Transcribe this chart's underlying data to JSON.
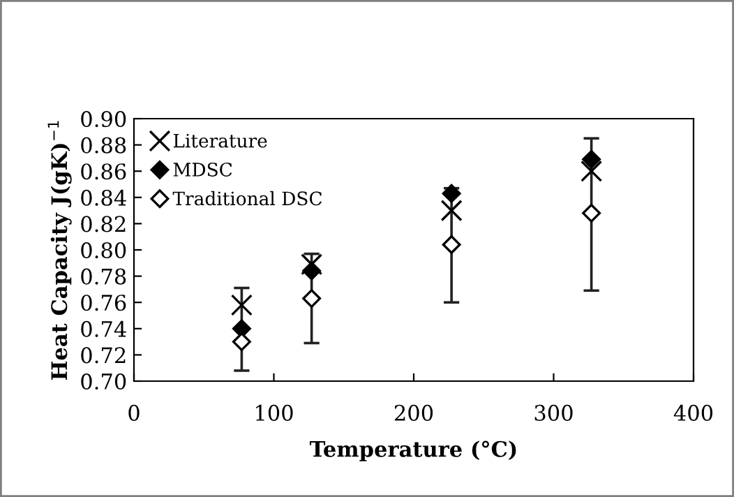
{
  "chart_data": {
    "type": "scatter",
    "xlabel": "Temperature (°C)",
    "ylabel": "Heat Capacity J(gK)$^{−1}$",
    "xlim": [
      0,
      400
    ],
    "xticks": [
      0,
      100,
      200,
      300,
      400
    ],
    "ylim": [
      0.7,
      0.9
    ],
    "yticks": [
      {
        "value": 0.7,
        "label": "0.70"
      },
      0.72,
      0.74,
      0.76,
      0.78,
      {
        "value": 0.8,
        "label": "0.80"
      },
      0.82,
      0.84,
      0.86,
      0.88,
      {
        "value": 0.9,
        "label": "0.90"
      }
    ],
    "grid": false,
    "legend": "top left",
    "series": [
      {
        "name": "Literature",
        "color": "#000000",
        "marker": "cross",
        "x": [
          77,
          127,
          227,
          327
        ],
        "values": [
          0.758,
          0.789,
          0.83,
          0.86
        ]
      },
      {
        "name": "MDSC",
        "color": "#000000",
        "marker": "diamond",
        "x": [
          77,
          127,
          227,
          327
        ],
        "values": [
          0.74,
          0.784,
          0.843,
          0.869
        ],
        "errors": [
          [
            0.708,
            0.771
          ],
          [
            0.729,
            0.797
          ],
          [
            0.76,
            0.847
          ],
          [
            0.769,
            0.885
          ]
        ]
      },
      {
        "name": "Traditional DSC",
        "color": "#ffffff",
        "marker": "diamond",
        "x": [
          77,
          127,
          227,
          327
        ],
        "values": [
          0.73,
          0.763,
          0.804,
          0.828
        ]
      }
    ]
  }
}
